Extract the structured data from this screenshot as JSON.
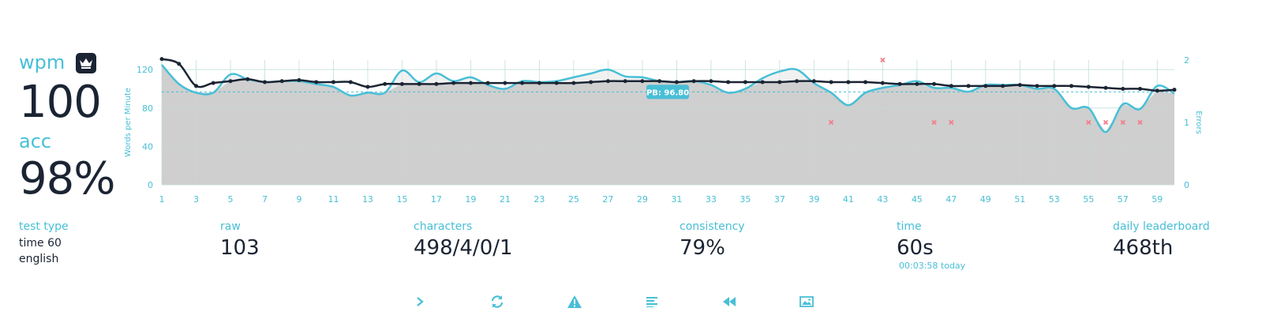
{
  "colors": {
    "accent": "#48bfd6",
    "dark": "#1b2433",
    "error": "#f47c8a",
    "fill": "#cfcfcf"
  },
  "wpm": {
    "label": "wpm",
    "value": "100",
    "badge_icon": "crown-icon"
  },
  "acc": {
    "label": "acc",
    "value": "98%"
  },
  "test_type": {
    "label": "test type",
    "mode": "time 60",
    "language": "english"
  },
  "stats": {
    "raw": {
      "label": "raw",
      "value": "103"
    },
    "characters": {
      "label": "characters",
      "value": "498/4/0/1"
    },
    "consistency": {
      "label": "consistency",
      "value": "79%"
    },
    "time": {
      "label": "time",
      "value": "60s",
      "sub": "00:03:58 today"
    },
    "leaderboard": {
      "label": "daily leaderboard",
      "value": "468th"
    }
  },
  "buttons": {
    "next": "chevron-right-icon",
    "restart": "refresh-icon",
    "report": "warning-icon",
    "words": "text-lines-icon",
    "replay": "rewind-icon",
    "screenshot": "image-icon"
  },
  "chart_data": {
    "type": "line",
    "ylabel": "Words per Minute",
    "y2label": "Errors",
    "x": [
      1,
      2,
      3,
      4,
      5,
      6,
      7,
      8,
      9,
      10,
      11,
      12,
      13,
      14,
      15,
      16,
      17,
      18,
      19,
      20,
      21,
      22,
      23,
      24,
      25,
      26,
      27,
      28,
      29,
      30,
      31,
      32,
      33,
      34,
      35,
      36,
      37,
      38,
      39,
      40,
      41,
      42,
      43,
      44,
      45,
      46,
      47,
      48,
      49,
      50,
      51,
      52,
      53,
      54,
      55,
      56,
      57,
      58,
      59,
      60
    ],
    "xticks": [
      1,
      3,
      5,
      7,
      9,
      11,
      13,
      15,
      17,
      19,
      21,
      23,
      25,
      27,
      29,
      31,
      33,
      35,
      37,
      39,
      41,
      43,
      45,
      47,
      49,
      51,
      53,
      55,
      57,
      59
    ],
    "ylim": [
      0,
      130
    ],
    "yticks": [
      0,
      40,
      80,
      120
    ],
    "y2lim": [
      0,
      2
    ],
    "y2ticks": [
      0,
      1,
      2
    ],
    "pb": {
      "value": 96.8,
      "label": "PB: 96.80"
    },
    "series": [
      {
        "name": "raw",
        "values": [
          125,
          105,
          96,
          96,
          115,
          110,
          107,
          108,
          108,
          105,
          102,
          93,
          96,
          96,
          119,
          107,
          116,
          108,
          112,
          104,
          100,
          108,
          107,
          108,
          112,
          116,
          120,
          113,
          112,
          108,
          107,
          108,
          104,
          96,
          100,
          111,
          118,
          120,
          106,
          96,
          83,
          96,
          101,
          104,
          108,
          101,
          101,
          97,
          104,
          104,
          104,
          100,
          100,
          80,
          80,
          55,
          84,
          79,
          103,
          95
        ]
      },
      {
        "name": "wpm",
        "values": [
          131,
          126,
          103,
          106,
          108,
          110,
          107,
          108,
          109,
          107,
          107,
          107,
          102,
          105,
          105,
          105,
          105,
          106,
          106,
          106,
          106,
          106,
          106,
          106,
          106,
          107,
          108,
          108,
          108,
          108,
          107,
          108,
          108,
          107,
          107,
          107,
          107,
          108,
          108,
          107,
          107,
          107,
          106,
          105,
          105,
          105,
          103,
          103,
          103,
          103,
          104,
          103,
          103,
          103,
          102,
          101,
          100,
          100,
          98,
          99
        ]
      }
    ],
    "errors": [
      {
        "x": 40,
        "y": 1
      },
      {
        "x": 43,
        "y": 2
      },
      {
        "x": 46,
        "y": 1
      },
      {
        "x": 47,
        "y": 1
      },
      {
        "x": 55,
        "y": 1
      },
      {
        "x": 56,
        "y": 1
      },
      {
        "x": 57,
        "y": 1
      },
      {
        "x": 58,
        "y": 1
      }
    ],
    "grid": true,
    "legend": "none"
  }
}
